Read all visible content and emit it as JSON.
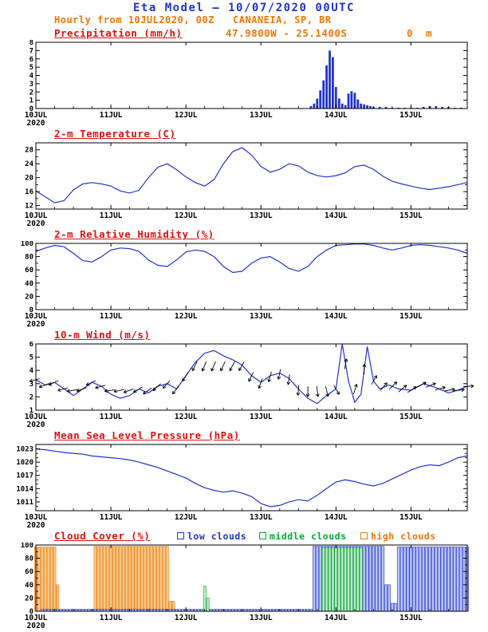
{
  "header": {
    "title": "Eta Model – 10/07/2020 00UTC",
    "subtitle": "Hourly from 10JUL2020, 00Z   CANANEIA, SP, BR",
    "coords": "47.9800W - 25.1400S",
    "elevation": "0  m"
  },
  "colors": {
    "header_blue": "#2233cc",
    "accent_orange": "#ee7700",
    "title_red": "#dd1111",
    "line_blue": "#2233cc",
    "axis_black": "#000000"
  },
  "x_axis": {
    "hours": [
      0,
      138
    ],
    "minor_step": 6,
    "ticks": [
      {
        "hour": 0,
        "label": "10JUL",
        "sublabel": "2020"
      },
      {
        "hour": 24,
        "label": "11JUL"
      },
      {
        "hour": 48,
        "label": "12JUL"
      },
      {
        "hour": 72,
        "label": "13JUL"
      },
      {
        "hour": 96,
        "label": "14JUL"
      },
      {
        "hour": 120,
        "label": "15JUL"
      }
    ]
  },
  "chart_data": [
    {
      "title": "Precipitation (mm/h)",
      "type": "bar",
      "ylabel": "mm/h",
      "ylim": [
        0,
        8
      ],
      "yticks": [
        0,
        1,
        2,
        3,
        4,
        5,
        6,
        7,
        8
      ],
      "yminor": [],
      "bar_color": "#2233cc",
      "bars": [
        [
          88,
          0.3
        ],
        [
          89,
          0.6
        ],
        [
          90,
          1.2
        ],
        [
          91,
          2.2
        ],
        [
          92,
          3.4
        ],
        [
          93,
          5.2
        ],
        [
          94,
          7.0
        ],
        [
          95,
          6.2
        ],
        [
          96,
          2.6
        ],
        [
          97,
          1.2
        ],
        [
          98,
          0.6
        ],
        [
          99,
          0.4
        ],
        [
          100,
          1.8
        ],
        [
          101,
          2.1
        ],
        [
          102,
          1.9
        ],
        [
          103,
          1.1
        ],
        [
          104,
          0.6
        ],
        [
          105,
          0.5
        ],
        [
          106,
          0.4
        ],
        [
          107,
          0.3
        ],
        [
          108,
          0.2
        ],
        [
          110,
          0.2
        ],
        [
          112,
          0.2
        ],
        [
          114,
          0.1
        ],
        [
          116,
          0.1
        ],
        [
          118,
          0.1
        ],
        [
          120,
          0.1
        ],
        [
          122,
          0.1
        ],
        [
          124,
          0.2
        ],
        [
          126,
          0.3
        ],
        [
          128,
          0.3
        ],
        [
          130,
          0.2
        ],
        [
          132,
          0.2
        ],
        [
          134,
          0.1
        ],
        [
          136,
          0.1
        ]
      ]
    },
    {
      "title": "2-m Temperature (C)",
      "type": "line",
      "ylabel": "C",
      "ylim": [
        11,
        30
      ],
      "yticks": [
        12,
        16,
        20,
        24,
        28
      ],
      "yminor": [
        14,
        18,
        22,
        26,
        30
      ],
      "line_color": "#2233cc",
      "points": [
        [
          0,
          16.2
        ],
        [
          3,
          14.5
        ],
        [
          6,
          12.8
        ],
        [
          9,
          13.4
        ],
        [
          12,
          16.5
        ],
        [
          15,
          18.2
        ],
        [
          18,
          18.6
        ],
        [
          21,
          18.2
        ],
        [
          24,
          17.6
        ],
        [
          27,
          16.2
        ],
        [
          30,
          15.6
        ],
        [
          33,
          16.4
        ],
        [
          36,
          20
        ],
        [
          39,
          23
        ],
        [
          42,
          24
        ],
        [
          45,
          22.3
        ],
        [
          48,
          20.2
        ],
        [
          51,
          18.6
        ],
        [
          54,
          17.6
        ],
        [
          57,
          19.5
        ],
        [
          60,
          24
        ],
        [
          63,
          27.5
        ],
        [
          66,
          28.6
        ],
        [
          69,
          26.5
        ],
        [
          72,
          23.2
        ],
        [
          75,
          21.6
        ],
        [
          78,
          22.4
        ],
        [
          81,
          24
        ],
        [
          84,
          23.4
        ],
        [
          87,
          21.6
        ],
        [
          90,
          20.6
        ],
        [
          93,
          20.2
        ],
        [
          96,
          20.6
        ],
        [
          99,
          21.4
        ],
        [
          102,
          23.2
        ],
        [
          105,
          23.6
        ],
        [
          108,
          22.4
        ],
        [
          111,
          20.4
        ],
        [
          114,
          19
        ],
        [
          117,
          18.2
        ],
        [
          120,
          17.6
        ],
        [
          123,
          17
        ],
        [
          126,
          16.6
        ],
        [
          129,
          17
        ],
        [
          132,
          17.4
        ],
        [
          135,
          18
        ],
        [
          138,
          18.6
        ]
      ]
    },
    {
      "title": "2-m Relative Humidity (%)",
      "type": "line",
      "ylabel": "%",
      "ylim": [
        0,
        100
      ],
      "yticks": [
        0,
        20,
        40,
        60,
        80,
        100
      ],
      "yminor": [
        10,
        30,
        50,
        70,
        90
      ],
      "line_color": "#2233cc",
      "points": [
        [
          0,
          88
        ],
        [
          3,
          93
        ],
        [
          6,
          97
        ],
        [
          9,
          95
        ],
        [
          12,
          85
        ],
        [
          15,
          74
        ],
        [
          18,
          72
        ],
        [
          21,
          80
        ],
        [
          24,
          90
        ],
        [
          27,
          93
        ],
        [
          30,
          92
        ],
        [
          33,
          88
        ],
        [
          36,
          75
        ],
        [
          39,
          67
        ],
        [
          42,
          65
        ],
        [
          45,
          75
        ],
        [
          48,
          87
        ],
        [
          51,
          90
        ],
        [
          54,
          88
        ],
        [
          57,
          80
        ],
        [
          60,
          65
        ],
        [
          63,
          56
        ],
        [
          66,
          58
        ],
        [
          69,
          70
        ],
        [
          72,
          78
        ],
        [
          75,
          80
        ],
        [
          78,
          72
        ],
        [
          81,
          62
        ],
        [
          84,
          58
        ],
        [
          87,
          65
        ],
        [
          90,
          80
        ],
        [
          93,
          90
        ],
        [
          96,
          97
        ],
        [
          99,
          98
        ],
        [
          102,
          99
        ],
        [
          105,
          99
        ],
        [
          108,
          97
        ],
        [
          111,
          93
        ],
        [
          114,
          90
        ],
        [
          117,
          93
        ],
        [
          120,
          97
        ],
        [
          123,
          98
        ],
        [
          126,
          97
        ],
        [
          129,
          95
        ],
        [
          132,
          93
        ],
        [
          135,
          90
        ],
        [
          138,
          85
        ]
      ]
    },
    {
      "title": "10-m Wind (m/s)",
      "type": "wind",
      "ylabel": "m/s",
      "ylim": [
        1,
        6
      ],
      "yticks": [
        1,
        2,
        3,
        4,
        5,
        6
      ],
      "yminor": [],
      "line_color": "#2233cc",
      "arrow_color": "#000000",
      "points": [
        [
          0,
          3.3
        ],
        [
          3,
          2.9
        ],
        [
          6,
          3.1
        ],
        [
          9,
          2.6
        ],
        [
          12,
          2.1
        ],
        [
          15,
          2.6
        ],
        [
          18,
          3.1
        ],
        [
          21,
          2.8
        ],
        [
          24,
          2.2
        ],
        [
          27,
          1.9
        ],
        [
          30,
          2.1
        ],
        [
          33,
          2.6
        ],
        [
          36,
          2.3
        ],
        [
          39,
          2.8
        ],
        [
          42,
          3.0
        ],
        [
          45,
          2.6
        ],
        [
          48,
          3.6
        ],
        [
          51,
          4.6
        ],
        [
          54,
          5.3
        ],
        [
          57,
          5.5
        ],
        [
          60,
          5.1
        ],
        [
          63,
          4.8
        ],
        [
          66,
          4.4
        ],
        [
          69,
          3.6
        ],
        [
          72,
          3.1
        ],
        [
          75,
          3.6
        ],
        [
          78,
          3.8
        ],
        [
          81,
          3.4
        ],
        [
          84,
          2.6
        ],
        [
          87,
          1.9
        ],
        [
          90,
          1.5
        ],
        [
          93,
          2.1
        ],
        [
          96,
          2.6
        ],
        [
          98,
          6.0
        ],
        [
          100,
          3.2
        ],
        [
          102,
          1.6
        ],
        [
          104,
          2.2
        ],
        [
          106,
          5.8
        ],
        [
          108,
          3.2
        ],
        [
          110,
          2.6
        ],
        [
          113,
          2.9
        ],
        [
          116,
          2.6
        ],
        [
          120,
          2.5
        ],
        [
          124,
          3.0
        ],
        [
          128,
          2.7
        ],
        [
          132,
          2.3
        ],
        [
          135,
          2.5
        ],
        [
          138,
          2.8
        ]
      ],
      "arrows": [
        [
          0,
          195
        ],
        [
          3,
          200
        ],
        [
          6,
          205
        ],
        [
          9,
          195
        ],
        [
          12,
          190
        ],
        [
          15,
          200
        ],
        [
          18,
          205
        ],
        [
          21,
          195
        ],
        [
          24,
          188
        ],
        [
          27,
          192
        ],
        [
          30,
          200
        ],
        [
          33,
          210
        ],
        [
          36,
          215
        ],
        [
          39,
          222
        ],
        [
          42,
          228
        ],
        [
          45,
          232
        ],
        [
          48,
          238
        ],
        [
          51,
          242
        ],
        [
          54,
          248
        ],
        [
          57,
          246
        ],
        [
          60,
          244
        ],
        [
          63,
          242
        ],
        [
          66,
          240
        ],
        [
          69,
          244
        ],
        [
          72,
          250
        ],
        [
          75,
          254
        ],
        [
          78,
          258
        ],
        [
          81,
          262
        ],
        [
          84,
          266
        ],
        [
          87,
          270
        ],
        [
          90,
          276
        ],
        [
          93,
          284
        ],
        [
          96,
          300
        ],
        [
          99,
          80
        ],
        [
          102,
          72
        ],
        [
          105,
          88
        ],
        [
          108,
          60
        ],
        [
          111,
          50
        ],
        [
          114,
          44
        ],
        [
          117,
          40
        ],
        [
          120,
          34
        ],
        [
          123,
          28
        ],
        [
          126,
          22
        ],
        [
          129,
          16
        ],
        [
          132,
          10
        ],
        [
          135,
          6
        ],
        [
          138,
          2
        ]
      ]
    },
    {
      "title": "Mean Sea Level Pressure (hPa)",
      "type": "line",
      "ylabel": "hPa",
      "ylim": [
        1009,
        1024
      ],
      "yticks": [
        1011,
        1014,
        1017,
        1020,
        1023
      ],
      "yminor": [
        1010,
        1012,
        1013,
        1015,
        1016,
        1018,
        1019,
        1021,
        1022,
        1024
      ],
      "line_color": "#2233cc",
      "points": [
        [
          0,
          1023
        ],
        [
          3,
          1022.8
        ],
        [
          6,
          1022.5
        ],
        [
          9,
          1022.2
        ],
        [
          12,
          1022
        ],
        [
          15,
          1021.8
        ],
        [
          18,
          1021.4
        ],
        [
          21,
          1021.2
        ],
        [
          24,
          1021
        ],
        [
          27,
          1020.8
        ],
        [
          30,
          1020.5
        ],
        [
          33,
          1020
        ],
        [
          36,
          1019.4
        ],
        [
          39,
          1018.8
        ],
        [
          42,
          1018
        ],
        [
          45,
          1017.2
        ],
        [
          48,
          1016.4
        ],
        [
          51,
          1015.2
        ],
        [
          54,
          1014.2
        ],
        [
          57,
          1013.6
        ],
        [
          60,
          1013.2
        ],
        [
          63,
          1013.5
        ],
        [
          66,
          1013
        ],
        [
          69,
          1012.2
        ],
        [
          72,
          1010.6
        ],
        [
          75,
          1009.9
        ],
        [
          78,
          1010.2
        ],
        [
          81,
          1011
        ],
        [
          84,
          1011.5
        ],
        [
          87,
          1011.2
        ],
        [
          90,
          1012.5
        ],
        [
          93,
          1014
        ],
        [
          96,
          1015.5
        ],
        [
          99,
          1016
        ],
        [
          102,
          1015.6
        ],
        [
          105,
          1015
        ],
        [
          108,
          1014.6
        ],
        [
          111,
          1015.2
        ],
        [
          114,
          1016.2
        ],
        [
          117,
          1017.2
        ],
        [
          120,
          1018.2
        ],
        [
          123,
          1019
        ],
        [
          126,
          1019.4
        ],
        [
          129,
          1019.2
        ],
        [
          132,
          1020
        ],
        [
          135,
          1021
        ],
        [
          138,
          1021.4
        ]
      ]
    },
    {
      "title": "Cloud Cover (%)",
      "type": "cloud",
      "ylabel": "%",
      "ylim": [
        0,
        100
      ],
      "yticks": [
        0,
        20,
        40,
        60,
        80,
        100
      ],
      "yminor": [
        10,
        30,
        50,
        70,
        90
      ],
      "series": [
        {
          "name": "low clouds",
          "color": "#2233cc",
          "fill": "#b9c6f2",
          "segments": [
            [
              2,
              88,
              3
            ],
            [
              89,
              111,
              98
            ],
            [
              112,
              113,
              40
            ],
            [
              114,
              115,
              12
            ],
            [
              116,
              138,
              97
            ]
          ]
        },
        {
          "name": "middle clouds",
          "color": "#00aa33",
          "fill": "#bfe9c6",
          "segments": [
            [
              54,
              54,
              38
            ],
            [
              55,
              55,
              20
            ],
            [
              92,
              104,
              96
            ]
          ]
        },
        {
          "name": "high clouds",
          "color": "#ee7700",
          "fill": "#f7c98c",
          "segments": [
            [
              0,
              6,
              97
            ],
            [
              7,
              7,
              40
            ],
            [
              19,
              42,
              98
            ],
            [
              43,
              44,
              15
            ]
          ]
        }
      ]
    }
  ]
}
